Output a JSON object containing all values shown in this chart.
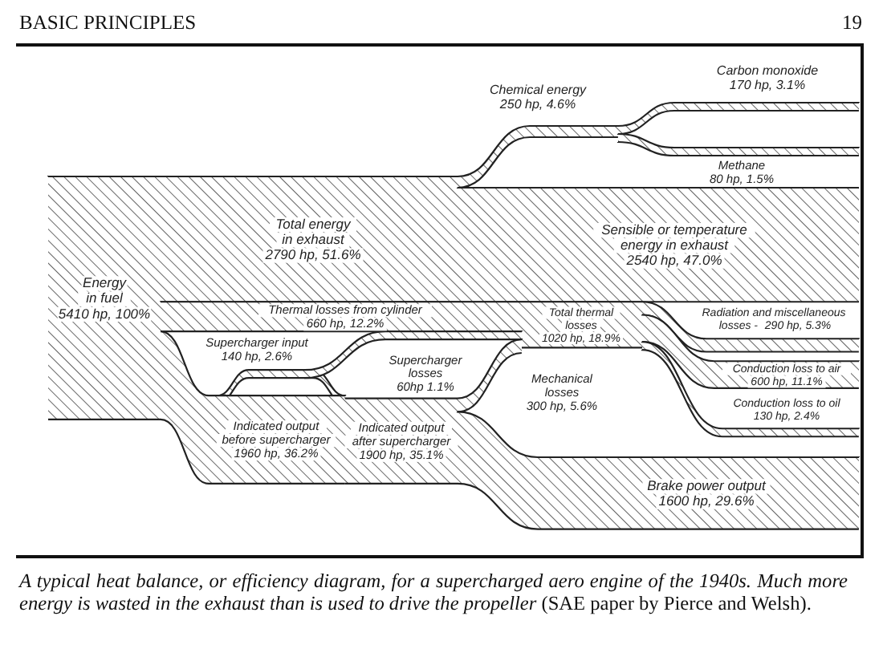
{
  "chart_data": {
    "type": "other",
    "title": "BASIC PRINCIPLES",
    "categories": [
      "Energy in fuel",
      "Total energy in exhaust",
      "Chemical energy",
      "Carbon monoxide",
      "Methane",
      "Sensible or temperature energy in exhaust",
      "Total thermal losses",
      "Radiation and miscellaneous losses -",
      "Conduction loss to air",
      "Conduction loss to oil",
      "Thermal losses from cylinder",
      "Supercharger input",
      "Indicated output before supercharger",
      "Supercharger losses",
      "Indicated output after supercharger",
      "Mechanical losses",
      "Brake power output"
    ],
    "values": [
      5410,
      2790,
      250,
      170,
      80,
      2540,
      1020,
      290,
      600,
      130,
      660,
      140,
      1960,
      60,
      1900,
      300,
      1600
    ],
    "value_labels": [
      "5410 hp, 100%",
      "2790 hp, 51.6%",
      "250 hp, 4.6%",
      "170 hp, 3.1%",
      "80 hp, 1.5%",
      "2540 hp, 47.0%",
      "1020 hp, 18.9%",
      "290 hp, 5.3%",
      "600 hp, 11.1%",
      "130 hp, 2.4%",
      "660 hp, 12.2%",
      "140 hp, 2.6%",
      "1960 hp, 36.2%",
      "60hp 1.1%",
      "1900 hp, 35.1%",
      "300 hp, 5.6%",
      "1600 hp, 29.6%"
    ],
    "color": "#222222",
    "annotations": [
      "19",
      "A typical heat balance, or efficiency diagram, for a supercharged aero engine of the 1940s. Much more energy is wasted in the exhaust than is used to drive the propeller (SAE paper by Pierce and Welsh)."
    ]
  }
}
